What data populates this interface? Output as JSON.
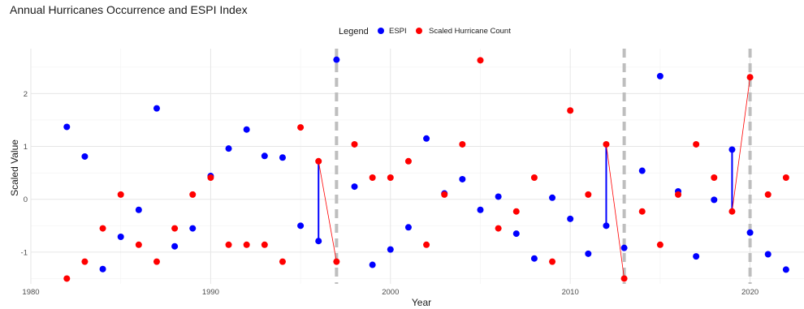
{
  "chart_data": {
    "type": "scatter",
    "title": "Annual Hurricanes Occurrence and ESPI Index",
    "xlabel": "Year",
    "ylabel": "Scaled Value",
    "xlim": [
      1980,
      2023
    ],
    "ylim": [
      -1.6,
      2.85
    ],
    "x_ticks": [
      1980,
      1990,
      2000,
      2010,
      2020
    ],
    "y_ticks": [
      -1,
      0,
      1,
      2
    ],
    "grid": true,
    "legend": {
      "title": "Legend",
      "position": "top",
      "entries": [
        {
          "label": "ESPI",
          "color": "#0000ff"
        },
        {
          "label": "Scaled Hurricane Count",
          "color": "#ff0000"
        }
      ]
    },
    "series": [
      {
        "name": "ESPI",
        "color": "#0000ff",
        "points": [
          [
            1982,
            1.37
          ],
          [
            1983,
            0.81
          ],
          [
            1984,
            -1.32
          ],
          [
            1985,
            -0.71
          ],
          [
            1986,
            -0.2
          ],
          [
            1987,
            1.72
          ],
          [
            1988,
            -0.89
          ],
          [
            1989,
            -0.55
          ],
          [
            1990,
            0.44
          ],
          [
            1991,
            0.96
          ],
          [
            1992,
            1.32
          ],
          [
            1993,
            0.82
          ],
          [
            1994,
            0.79
          ],
          [
            1995,
            -0.5
          ],
          [
            1996,
            -0.79
          ],
          [
            1997,
            2.64
          ],
          [
            1998,
            0.24
          ],
          [
            1999,
            -1.24
          ],
          [
            2000,
            -0.95
          ],
          [
            2001,
            -0.53
          ],
          [
            2002,
            1.15
          ],
          [
            2003,
            0.11
          ],
          [
            2004,
            0.38
          ],
          [
            2005,
            -0.2
          ],
          [
            2006,
            0.05
          ],
          [
            2007,
            -0.65
          ],
          [
            2008,
            -1.12
          ],
          [
            2009,
            0.03
          ],
          [
            2010,
            -0.37
          ],
          [
            2011,
            -1.03
          ],
          [
            2012,
            -0.5
          ],
          [
            2013,
            -0.92
          ],
          [
            2014,
            0.54
          ],
          [
            2015,
            2.33
          ],
          [
            2016,
            0.15
          ],
          [
            2017,
            -1.08
          ],
          [
            2018,
            -0.01
          ],
          [
            2019,
            0.94
          ],
          [
            2020,
            -0.63
          ],
          [
            2021,
            -1.04
          ],
          [
            2022,
            -1.33
          ]
        ]
      },
      {
        "name": "Scaled Hurricane Count",
        "color": "#ff0000",
        "points": [
          [
            1982,
            -1.5
          ],
          [
            1983,
            -1.18
          ],
          [
            1984,
            -0.55
          ],
          [
            1985,
            0.09
          ],
          [
            1986,
            -0.86
          ],
          [
            1987,
            -1.18
          ],
          [
            1988,
            -0.55
          ],
          [
            1989,
            0.09
          ],
          [
            1990,
            0.41
          ],
          [
            1991,
            -0.86
          ],
          [
            1992,
            -0.86
          ],
          [
            1993,
            -0.86
          ],
          [
            1994,
            -1.18
          ],
          [
            1995,
            1.36
          ],
          [
            1996,
            0.72
          ],
          [
            1997,
            -1.18
          ],
          [
            1998,
            1.04
          ],
          [
            1999,
            0.41
          ],
          [
            2000,
            0.41
          ],
          [
            2001,
            0.72
          ],
          [
            2002,
            -0.86
          ],
          [
            2003,
            0.09
          ],
          [
            2004,
            1.04
          ],
          [
            2005,
            2.63
          ],
          [
            2006,
            -0.55
          ],
          [
            2007,
            -0.23
          ],
          [
            2008,
            0.41
          ],
          [
            2009,
            -1.18
          ],
          [
            2010,
            1.68
          ],
          [
            2011,
            0.09
          ],
          [
            2012,
            1.04
          ],
          [
            2013,
            -1.5
          ],
          [
            2014,
            -0.23
          ],
          [
            2015,
            -0.86
          ],
          [
            2016,
            0.09
          ],
          [
            2017,
            1.04
          ],
          [
            2018,
            0.41
          ],
          [
            2019,
            -0.23
          ],
          [
            2020,
            2.31
          ],
          [
            2021,
            0.09
          ],
          [
            2022,
            0.41
          ]
        ]
      }
    ],
    "vertical_markers": [
      1997,
      2013,
      2020
    ],
    "blue_connectors": [
      {
        "x": 1996,
        "y1": -0.79,
        "y2": 0.72
      },
      {
        "x": 2012,
        "y1": -0.5,
        "y2": 1.04
      },
      {
        "x": 2019,
        "y1": -0.23,
        "y2": 0.94
      }
    ],
    "red_connectors": [
      {
        "x1": 1996,
        "y1": 0.72,
        "x2": 1997,
        "y2": -1.18
      },
      {
        "x1": 2012,
        "y1": 1.04,
        "x2": 2013,
        "y2": -1.5
      },
      {
        "x1": 2019,
        "y1": -0.23,
        "x2": 2020,
        "y2": 2.31
      }
    ]
  }
}
